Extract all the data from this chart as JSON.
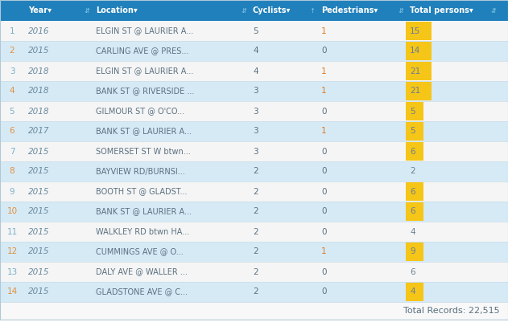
{
  "rows": [
    [
      1,
      2016,
      "ELGIN ST @ LAURIER A...",
      5,
      1,
      15,
      true
    ],
    [
      2,
      2015,
      "CARLING AVE @ PRES...",
      4,
      0,
      14,
      true
    ],
    [
      3,
      2018,
      "ELGIN ST @ LAURIER A...",
      4,
      1,
      21,
      true
    ],
    [
      4,
      2018,
      "BANK ST @ RIVERSIDE ...",
      3,
      1,
      21,
      true
    ],
    [
      5,
      2018,
      "GILMOUR ST @ O'CO...",
      3,
      0,
      5,
      true
    ],
    [
      6,
      2017,
      "BANK ST @ LAURIER A...",
      3,
      1,
      5,
      true
    ],
    [
      7,
      2015,
      "SOMERSET ST W btwn...",
      3,
      0,
      6,
      true
    ],
    [
      8,
      2015,
      "BAYVIEW RD/BURNSI...",
      2,
      0,
      2,
      false
    ],
    [
      9,
      2015,
      "BOOTH ST @ GLADST...",
      2,
      0,
      6,
      true
    ],
    [
      10,
      2015,
      "BANK ST @ LAURIER A...",
      2,
      0,
      6,
      true
    ],
    [
      11,
      2015,
      "WALKLEY RD btwn HA...",
      2,
      0,
      4,
      false
    ],
    [
      12,
      2015,
      "CUMMINGS AVE @ O...",
      2,
      1,
      9,
      true
    ],
    [
      13,
      2015,
      "DALY AVE @ WALLER ...",
      2,
      0,
      6,
      false
    ],
    [
      14,
      2015,
      "GLADSTONE AVE @ C...",
      2,
      0,
      4,
      true
    ]
  ],
  "total_records": "Total Records: 22,515",
  "header_bg": "#2080bb",
  "header_text": "#ffffff",
  "row_blue_bg": "#d6eaf5",
  "row_white_bg": "#f5f5f5",
  "row_text": "#6a8aa0",
  "index_text": "#8aadbe",
  "highlight_bg": "#f5c518",
  "pedestrian_color": "#e07820",
  "border_color": "#c8dce8",
  "footer_bg": "#f0f4f7",
  "total_text_color": "#6a8090",
  "highlight_rows": [
    1,
    2,
    3,
    4,
    6,
    7,
    9,
    10,
    12,
    14
  ],
  "sort_arrow_color": "#88c8e8"
}
